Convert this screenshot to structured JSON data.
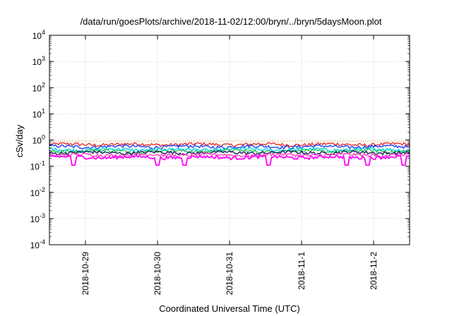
{
  "chart_data": {
    "type": "line",
    "title": "/data/run/goesPlots/archive/2018-11-02/12:00/bryn/../bryn/5daysMoon.plot",
    "xlabel": "Coordinated Universal Time (UTC)",
    "ylabel": "cSv/day",
    "y_scale": "log",
    "ylim": [
      0.0001,
      10000
    ],
    "y_ticks": [
      {
        "base": "10",
        "exp": "4"
      },
      {
        "base": "10",
        "exp": "3"
      },
      {
        "base": "10",
        "exp": "2"
      },
      {
        "base": "10",
        "exp": "1"
      },
      {
        "base": "10",
        "exp": "0"
      },
      {
        "base": "10",
        "exp": "-1"
      },
      {
        "base": "10",
        "exp": "-2"
      },
      {
        "base": "10",
        "exp": "-3"
      },
      {
        "base": "10",
        "exp": "-4"
      }
    ],
    "xlim": [
      "2018-10-28T12:00",
      "2018-11-02T12:00"
    ],
    "x_ticks": [
      "2018-10-29",
      "2018-10-30",
      "2018-10-31",
      "2018-11-1",
      "2018-11-2"
    ],
    "grid": true,
    "reference_line": {
      "value": 0.9,
      "color": "#ff8c00",
      "style": "dotted"
    },
    "series": [
      {
        "color": "#e53030",
        "level": 0.68,
        "dips": []
      },
      {
        "color": "#2040ff",
        "level": 0.56,
        "dips": []
      },
      {
        "color": "#00d8e0",
        "level": 0.43,
        "dips": []
      },
      {
        "color": "#30c060",
        "level": 0.38,
        "dips": []
      },
      {
        "color": "#202060",
        "level": 0.33,
        "dips": []
      },
      {
        "color": "#ff40c0",
        "level": 0.27,
        "dips": []
      },
      {
        "color": "#ff00ff",
        "level": 0.22,
        "dips": [
          "2018-10-28T20:00",
          "2018-10-30T00:00",
          "2018-10-30T09:00",
          "2018-10-31T13:00",
          "2018-11-01T15:00",
          "2018-11-01T22:00",
          "2018-11-02T10:00"
        ]
      }
    ]
  }
}
